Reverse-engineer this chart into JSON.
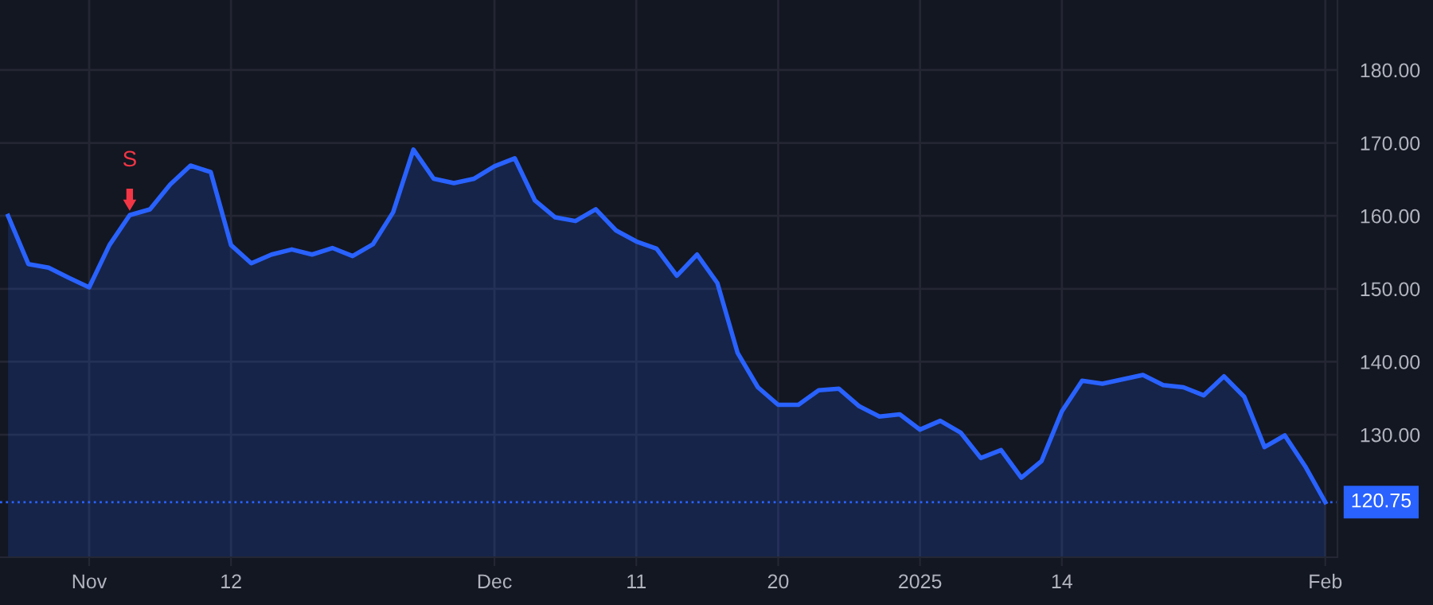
{
  "chart_data": {
    "type": "area",
    "categories": [
      null,
      null,
      null,
      null,
      "Nov",
      null,
      null,
      null,
      null,
      null,
      null,
      "12",
      null,
      null,
      null,
      null,
      null,
      null,
      null,
      null,
      null,
      null,
      null,
      null,
      "Dec",
      null,
      null,
      null,
      null,
      null,
      null,
      "11",
      null,
      null,
      null,
      null,
      null,
      null,
      "20",
      null,
      null,
      null,
      null,
      null,
      null,
      "2025",
      null,
      null,
      null,
      null,
      null,
      null,
      "14",
      null,
      null,
      null,
      null,
      null,
      null,
      null,
      null,
      null,
      null,
      null,
      null,
      "Feb"
    ],
    "series": [
      {
        "color": "#2962ff",
        "values": [
          160.0,
          153.4,
          152.9,
          151.5,
          150.2,
          156.0,
          160.1,
          160.9,
          164.3,
          166.9,
          166.0,
          156.0,
          153.5,
          154.7,
          155.4,
          154.7,
          155.6,
          154.5,
          156.1,
          160.5,
          169.1,
          165.1,
          164.5,
          165.1,
          166.8,
          167.9,
          162.1,
          159.8,
          159.3,
          160.9,
          158.0,
          156.5,
          155.5,
          151.8,
          154.7,
          150.8,
          141.2,
          136.5,
          134.1,
          134.1,
          136.1,
          136.3,
          133.9,
          132.5,
          132.8,
          130.7,
          131.9,
          130.3,
          126.8,
          127.9,
          124.1,
          126.4,
          133.2,
          137.4,
          137.0,
          137.6,
          138.2,
          136.8,
          136.5,
          135.4,
          138.0,
          135.2,
          128.3,
          129.9,
          125.7,
          120.75
        ]
      }
    ],
    "ylim": [
      113.2,
      189.6
    ],
    "yticks": [
      {
        "value": 130,
        "label": "130.00"
      },
      {
        "value": 140,
        "label": "140.00"
      },
      {
        "value": 150,
        "label": "150.00"
      },
      {
        "value": 160,
        "label": "160.00"
      },
      {
        "value": 170,
        "label": "170.00"
      },
      {
        "value": 180,
        "label": "180.00"
      }
    ],
    "grid": true,
    "annotations": [
      {
        "text": "S",
        "y": 160.1
      }
    ],
    "ref_lines": [
      {
        "axis": "y",
        "value": 120.75,
        "label": "120.75",
        "color": "#2962ff",
        "line_style": "dotted"
      }
    ]
  }
}
